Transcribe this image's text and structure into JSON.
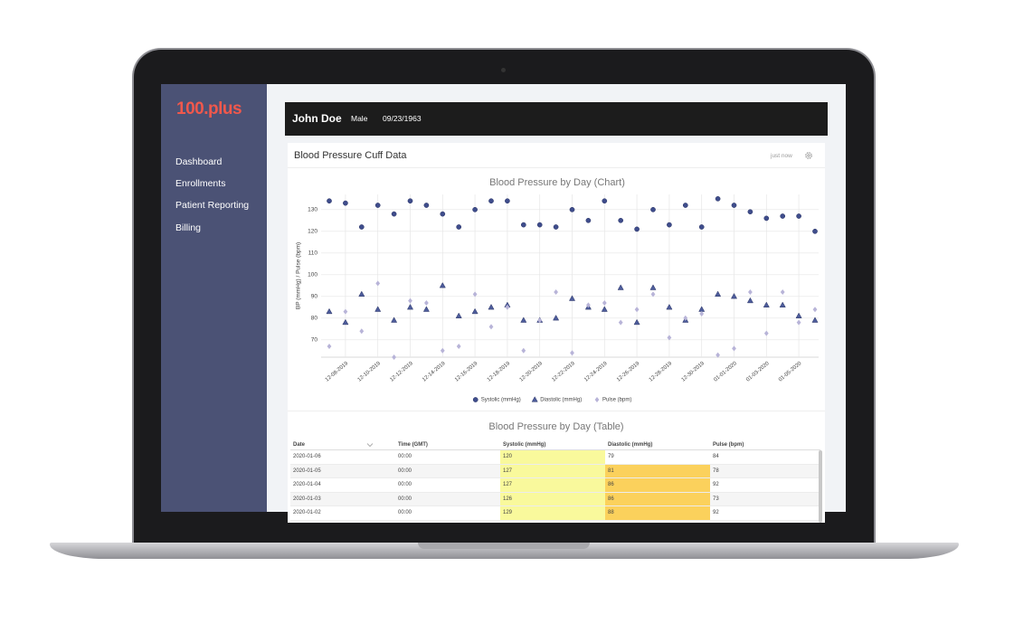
{
  "sidebar": {
    "logo": "100.plus",
    "nav": [
      "Dashboard",
      "Enrollments",
      "Patient Reporting",
      "Billing"
    ]
  },
  "header": {
    "name": "John Doe",
    "gender": "Male",
    "dob": "09/23/1963"
  },
  "card": {
    "title": "Blood Pressure Cuff Data",
    "status": "just now"
  },
  "chart_data": {
    "type": "scatter",
    "title": "Blood Pressure by Day (Chart)",
    "y_label": "BP (mmHg) / Pulse (bpm)",
    "categories": [
      null,
      "12-08-2019",
      null,
      "12-10-2019",
      null,
      "12-12-2019",
      null,
      "12-14-2019",
      null,
      "12-16-2019",
      null,
      "12-18-2019",
      null,
      "12-20-2019",
      null,
      "12-22-2019",
      null,
      "12-24-2019",
      null,
      "12-26-2019",
      null,
      "12-28-2019",
      null,
      "12-30-2019",
      null,
      "01-01-2020",
      null,
      "01-03-2020",
      null,
      "01-05-2020",
      null
    ],
    "series": [
      {
        "name": "Systolic (mmHg)",
        "color": "#3f4d8c",
        "marker": "circle",
        "values": [
          134,
          133,
          122,
          132,
          128,
          134,
          132,
          128,
          122,
          130,
          134,
          134,
          123,
          123,
          122,
          130,
          125,
          134,
          125,
          121,
          130,
          123,
          132,
          122,
          135,
          132,
          129,
          126,
          127,
          127,
          120
        ]
      },
      {
        "name": "Diastolic (mmHg)",
        "color": "#4d5c9b",
        "marker": "triangle",
        "values": [
          83,
          78,
          91,
          84,
          79,
          85,
          84,
          95,
          81,
          83,
          85,
          86,
          79,
          79,
          80,
          89,
          85,
          84,
          94,
          78,
          94,
          85,
          79,
          84,
          91,
          90,
          88,
          86,
          86,
          81,
          79
        ]
      },
      {
        "name": "Pulse (bpm)",
        "color": "#b8b4d8",
        "marker": "diamond",
        "values": [
          67,
          83,
          74,
          96,
          62,
          88,
          87,
          65,
          67,
          91,
          76,
          85,
          65,
          79,
          92,
          64,
          86,
          87,
          78,
          84,
          91,
          71,
          80,
          82,
          63,
          66,
          92,
          73,
          92,
          78,
          84
        ]
      }
    ],
    "ylim": [
      62,
      137
    ],
    "yticks": [
      70,
      80,
      90,
      100,
      110,
      120,
      130
    ],
    "grid": true,
    "legend": "bottom"
  },
  "table": {
    "title": "Blood Pressure by Day (Table)",
    "columns": [
      "Date",
      "Time (GMT)",
      "Systolic (mmHg)",
      "Diastolic (mmHg)",
      "Pulse (bpm)"
    ],
    "rows": [
      [
        "2020-01-06",
        "00:00",
        120,
        79,
        84
      ],
      [
        "2020-01-05",
        "00:00",
        127,
        81,
        78
      ],
      [
        "2020-01-04",
        "00:00",
        127,
        86,
        92
      ],
      [
        "2020-01-03",
        "00:00",
        126,
        86,
        73
      ],
      [
        "2020-01-02",
        "00:00",
        129,
        88,
        92
      ]
    ]
  }
}
